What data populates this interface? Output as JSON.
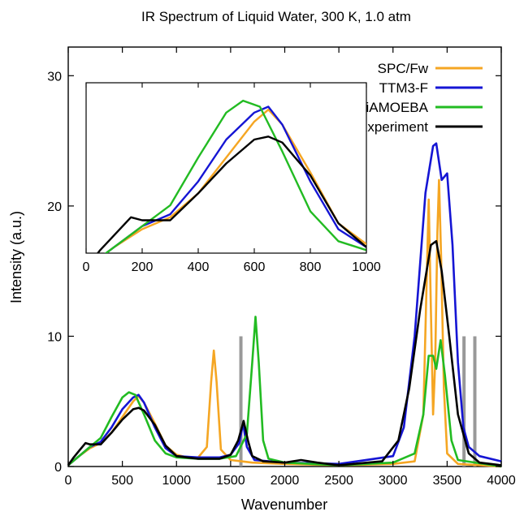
{
  "chart_data": {
    "type": "line",
    "title": "IR Spectrum of Liquid Water, 300 K, 1.0 atm",
    "xlabel": "Wavenumber",
    "ylabel": "Intensity (a.u.)",
    "xlim": [
      0,
      4000
    ],
    "ylim": [
      0,
      30
    ],
    "xticks": [
      "0",
      "500",
      "1000",
      "1500",
      "2000",
      "2500",
      "3000",
      "3500",
      "4000"
    ],
    "yticks": [
      "0",
      "10",
      "20",
      "30"
    ],
    "legend_position": "top-right",
    "series": [
      {
        "name": "SPC/Fw",
        "color": "#f5a623",
        "points": [
          [
            0,
            0.1
          ],
          [
            100,
            0.8
          ],
          [
            200,
            1.4
          ],
          [
            300,
            1.8
          ],
          [
            400,
            2.6
          ],
          [
            500,
            3.8
          ],
          [
            600,
            5.0
          ],
          [
            650,
            5.4
          ],
          [
            700,
            4.9
          ],
          [
            800,
            3.3
          ],
          [
            900,
            1.6
          ],
          [
            1000,
            0.9
          ],
          [
            1100,
            0.7
          ],
          [
            1200,
            0.7
          ],
          [
            1280,
            1.5
          ],
          [
            1320,
            6.5
          ],
          [
            1345,
            8.9
          ],
          [
            1370,
            6.5
          ],
          [
            1410,
            1.3
          ],
          [
            1500,
            0.5
          ],
          [
            1600,
            0.4
          ],
          [
            1700,
            0.3
          ],
          [
            2000,
            0.2
          ],
          [
            2500,
            0.1
          ],
          [
            3000,
            0.2
          ],
          [
            3200,
            0.4
          ],
          [
            3280,
            4
          ],
          [
            3310,
            14
          ],
          [
            3330,
            20.5
          ],
          [
            3350,
            12
          ],
          [
            3370,
            4
          ],
          [
            3390,
            8
          ],
          [
            3410,
            18
          ],
          [
            3425,
            22
          ],
          [
            3445,
            16
          ],
          [
            3470,
            6
          ],
          [
            3500,
            1.0
          ],
          [
            3600,
            0.2
          ],
          [
            4000,
            0.0
          ]
        ]
      },
      {
        "name": "TTM3-F",
        "color": "#1515d4",
        "points": [
          [
            0,
            0.1
          ],
          [
            100,
            0.8
          ],
          [
            200,
            1.5
          ],
          [
            300,
            1.9
          ],
          [
            400,
            3.0
          ],
          [
            500,
            4.4
          ],
          [
            600,
            5.3
          ],
          [
            650,
            5.5
          ],
          [
            700,
            4.9
          ],
          [
            800,
            3.0
          ],
          [
            900,
            1.4
          ],
          [
            1000,
            0.8
          ],
          [
            1200,
            0.7
          ],
          [
            1400,
            0.7
          ],
          [
            1500,
            0.9
          ],
          [
            1580,
            1.8
          ],
          [
            1615,
            3.3
          ],
          [
            1650,
            1.5
          ],
          [
            1720,
            0.5
          ],
          [
            2000,
            0.3
          ],
          [
            2500,
            0.2
          ],
          [
            3000,
            0.8
          ],
          [
            3100,
            3
          ],
          [
            3200,
            10
          ],
          [
            3300,
            21
          ],
          [
            3370,
            24.6
          ],
          [
            3400,
            24.8
          ],
          [
            3450,
            22
          ],
          [
            3500,
            22.5
          ],
          [
            3550,
            17
          ],
          [
            3600,
            8
          ],
          [
            3650,
            3
          ],
          [
            3700,
            1.5
          ],
          [
            3800,
            0.8
          ],
          [
            4000,
            0.4
          ]
        ]
      },
      {
        "name": "iAMOEBA",
        "color": "#22bb22",
        "points": [
          [
            0,
            0.1
          ],
          [
            100,
            0.8
          ],
          [
            200,
            1.5
          ],
          [
            300,
            2.2
          ],
          [
            400,
            3.8
          ],
          [
            500,
            5.3
          ],
          [
            560,
            5.7
          ],
          [
            620,
            5.5
          ],
          [
            700,
            4.0
          ],
          [
            800,
            2.0
          ],
          [
            900,
            1.0
          ],
          [
            1000,
            0.7
          ],
          [
            1200,
            0.6
          ],
          [
            1400,
            0.6
          ],
          [
            1550,
            0.8
          ],
          [
            1650,
            2.5
          ],
          [
            1700,
            8
          ],
          [
            1730,
            11.5
          ],
          [
            1760,
            8
          ],
          [
            1800,
            2
          ],
          [
            1850,
            0.6
          ],
          [
            2000,
            0.3
          ],
          [
            2500,
            0.1
          ],
          [
            3000,
            0.3
          ],
          [
            3200,
            1.0
          ],
          [
            3280,
            4
          ],
          [
            3330,
            8.5
          ],
          [
            3370,
            8.5
          ],
          [
            3400,
            7.5
          ],
          [
            3440,
            9.7
          ],
          [
            3480,
            7
          ],
          [
            3540,
            2
          ],
          [
            3600,
            0.5
          ],
          [
            4000,
            0.0
          ]
        ]
      },
      {
        "name": "Experiment",
        "color": "#000000",
        "points": [
          [
            0,
            0.1
          ],
          [
            50,
            0.7
          ],
          [
            100,
            1.2
          ],
          [
            160,
            1.8
          ],
          [
            200,
            1.7
          ],
          [
            300,
            1.7
          ],
          [
            400,
            2.6
          ],
          [
            500,
            3.6
          ],
          [
            600,
            4.4
          ],
          [
            650,
            4.5
          ],
          [
            700,
            4.3
          ],
          [
            800,
            3.2
          ],
          [
            900,
            1.6
          ],
          [
            1000,
            0.8
          ],
          [
            1200,
            0.6
          ],
          [
            1400,
            0.6
          ],
          [
            1500,
            0.9
          ],
          [
            1570,
            2
          ],
          [
            1620,
            3.5
          ],
          [
            1660,
            2
          ],
          [
            1700,
            0.8
          ],
          [
            1800,
            0.4
          ],
          [
            2000,
            0.3
          ],
          [
            2150,
            0.5
          ],
          [
            2300,
            0.3
          ],
          [
            2500,
            0.1
          ],
          [
            2900,
            0.4
          ],
          [
            3050,
            2
          ],
          [
            3150,
            6
          ],
          [
            3250,
            12
          ],
          [
            3350,
            17
          ],
          [
            3400,
            17.3
          ],
          [
            3450,
            15
          ],
          [
            3520,
            10
          ],
          [
            3600,
            4
          ],
          [
            3700,
            1
          ],
          [
            3800,
            0.3
          ],
          [
            4000,
            0.1
          ]
        ]
      }
    ],
    "reference_lines": [
      {
        "color": "#999999",
        "x": 1595,
        "y_top": 10
      },
      {
        "color": "#999999",
        "x": 3656,
        "y_top": 10
      },
      {
        "color": "#999999",
        "x": 3756,
        "y_top": 10
      }
    ],
    "inset": {
      "xlim": [
        0,
        1000
      ],
      "xticks": [
        "0",
        "200",
        "400",
        "600",
        "800",
        "1000"
      ]
    }
  }
}
